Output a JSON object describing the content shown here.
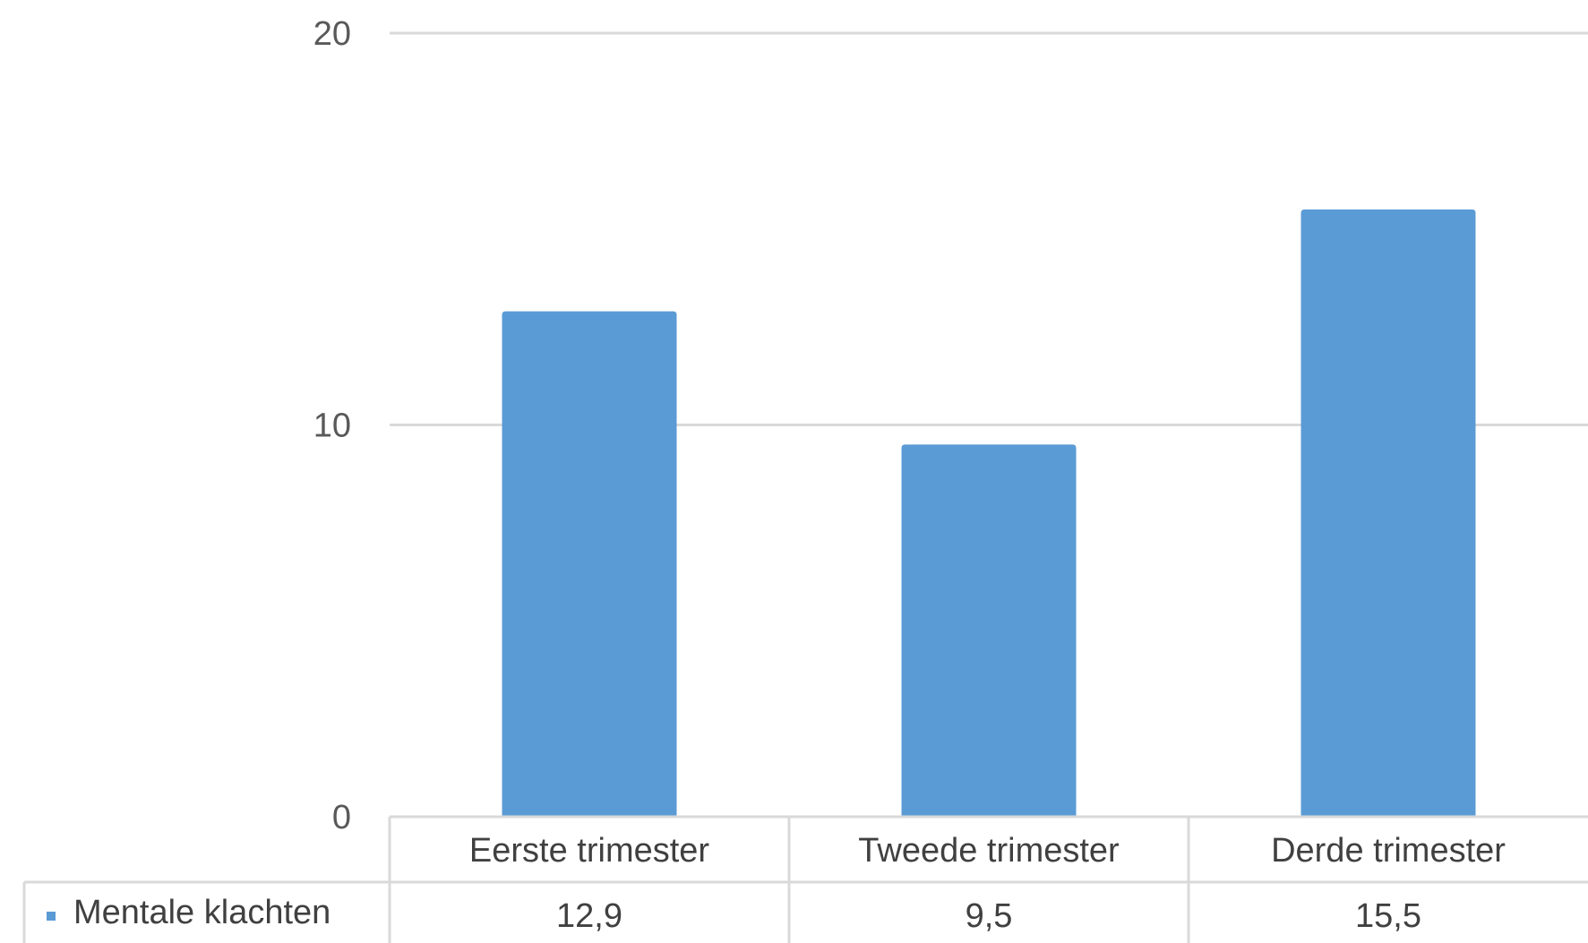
{
  "chart_data": {
    "type": "bar",
    "title": "",
    "xlabel": "",
    "ylabel": "",
    "categories": [
      "Eerste trimester",
      "Tweede trimester",
      "Derde trimester"
    ],
    "series": [
      {
        "name": "Mentale klachten",
        "values": [
          12.9,
          9.5,
          15.5
        ],
        "value_labels": [
          "12,9",
          "9,5",
          "15,5"
        ],
        "color": "#5B9BD5"
      }
    ],
    "ylim": [
      0,
      20
    ],
    "yticks": [
      0,
      10,
      20
    ],
    "ytick_labels": [
      "0",
      "10",
      "20"
    ],
    "grid": true,
    "data_table": true,
    "legend": "data-table-left"
  }
}
